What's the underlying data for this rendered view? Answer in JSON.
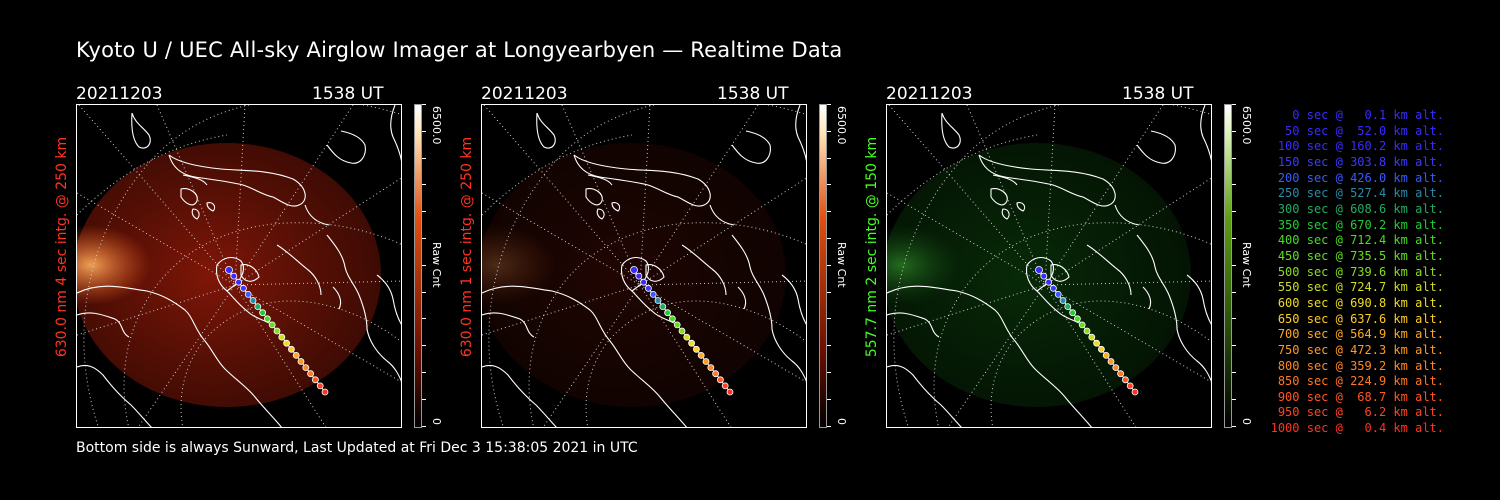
{
  "title": "Kyoto U / UEC All-sky Airglow Imager at Longyearbyen — Realtime Data",
  "footer": "Bottom side is always Sunward, Last Updated at Fri Dec  3 15:38:05 2021 in UTC",
  "panels": [
    {
      "date": "20211203",
      "time": "1538 UT",
      "side_label": "630.0 nm 4 sec intg. @ 250 km",
      "label_color": "#ff3322",
      "cbar_max": "6500.0",
      "cbar_min": "0",
      "cbar_unit": "Raw Cnt",
      "glow": "red",
      "glow_level": 1.0
    },
    {
      "date": "20211203",
      "time": "1538 UT",
      "side_label": "630.0 nm 1 sec intg. @ 250 km",
      "label_color": "#ff3322",
      "cbar_max": "6500.0",
      "cbar_min": "0",
      "cbar_unit": "Raw Cnt",
      "glow": "red",
      "glow_level": 0.25
    },
    {
      "date": "20211203",
      "time": "1538 UT",
      "side_label": "557.7 nm 2 sec intg. @ 150 km",
      "label_color": "#44ff22",
      "cbar_max": "6500.0",
      "cbar_min": "0",
      "cbar_unit": "Raw Cnt",
      "glow": "green",
      "glow_level": 0.5
    }
  ],
  "legend": [
    {
      "text": "0 sec @   0.1 km alt.",
      "color": "#3a2aff"
    },
    {
      "text": "50 sec @  52.0 km alt.",
      "color": "#3a2aff"
    },
    {
      "text": "100 sec @ 160.2 km alt.",
      "color": "#3a2aff"
    },
    {
      "text": "150 sec @ 303.8 km alt.",
      "color": "#3a3aff"
    },
    {
      "text": "200 sec @ 426.0 km alt.",
      "color": "#3a5aff"
    },
    {
      "text": "250 sec @ 527.4 km alt.",
      "color": "#2a8aaa"
    },
    {
      "text": "300 sec @ 608.6 km alt.",
      "color": "#22aa66"
    },
    {
      "text": "350 sec @ 670.2 km alt.",
      "color": "#22cc33"
    },
    {
      "text": "400 sec @ 712.4 km alt.",
      "color": "#44dd22"
    },
    {
      "text": "450 sec @ 735.5 km alt.",
      "color": "#66dd22"
    },
    {
      "text": "500 sec @ 739.6 km alt.",
      "color": "#88dd22"
    },
    {
      "text": "550 sec @ 724.7 km alt.",
      "color": "#ccdd22"
    },
    {
      "text": "600 sec @ 690.8 km alt.",
      "color": "#eedd22"
    },
    {
      "text": "650 sec @ 637.6 km alt.",
      "color": "#ffcc22"
    },
    {
      "text": "700 sec @ 564.9 km alt.",
      "color": "#ffaa22"
    },
    {
      "text": "750 sec @ 472.3 km alt.",
      "color": "#ff9922"
    },
    {
      "text": "800 sec @ 359.2 km alt.",
      "color": "#ff8822"
    },
    {
      "text": "850 sec @ 224.9 km alt.",
      "color": "#ff7722"
    },
    {
      "text": "900 sec @  68.7 km alt.",
      "color": "#ff5522"
    },
    {
      "text": "950 sec @   6.2 km alt.",
      "color": "#ff4422"
    },
    {
      "text": "1000 sec @   0.4 km alt.",
      "color": "#ff3322"
    }
  ]
}
